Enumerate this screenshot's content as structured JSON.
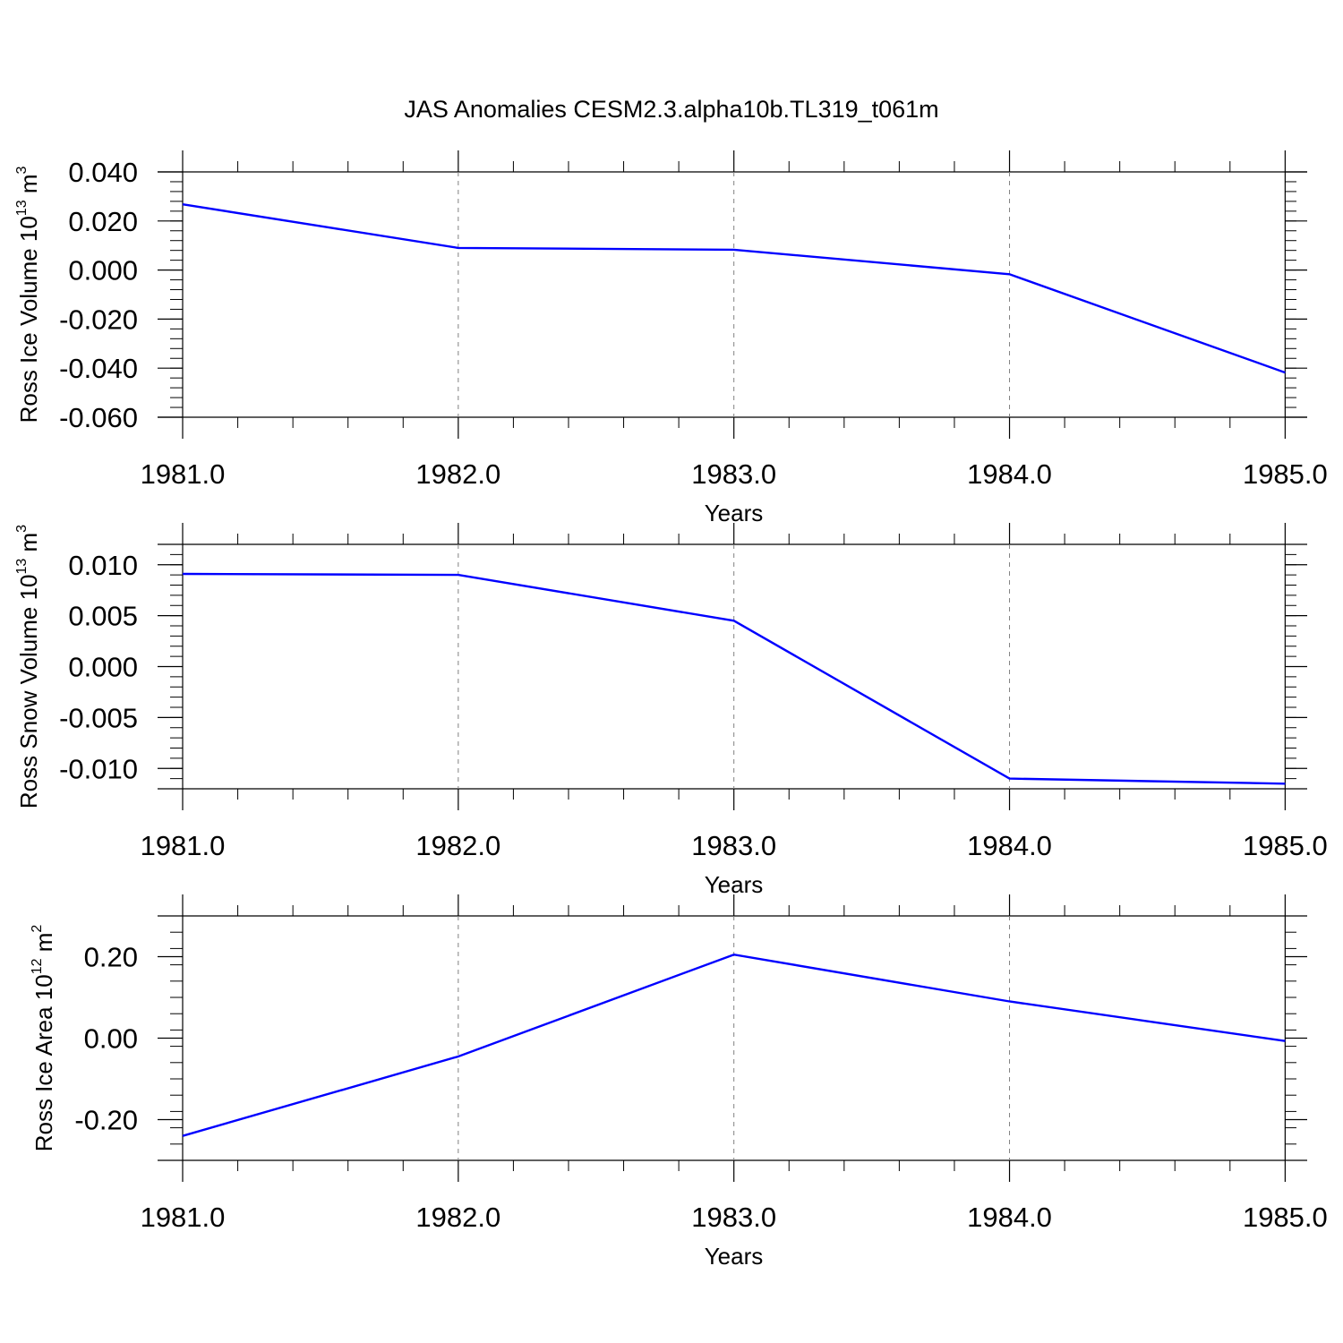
{
  "title": "JAS Anomalies CESM2.3.alpha10b.TL319_t061m",
  "colors": {
    "series": "#0000ff",
    "axis": "#000000",
    "grid": "#808080"
  },
  "chart_data": [
    {
      "type": "line",
      "xlabel": "Years",
      "ylabel": {
        "text": "Ross Ice Volume 10",
        "exponent": "13",
        "unit": " m",
        "unit_exponent": "3"
      },
      "x": [
        1981,
        1982,
        1983,
        1984,
        1985
      ],
      "y": [
        0.0268,
        0.009,
        0.0083,
        -0.0017,
        -0.0418
      ],
      "xlim": [
        1981,
        1985.08
      ],
      "ylim": [
        -0.06,
        0.04
      ],
      "xticks": [
        "1981.0",
        "1982.0",
        "1983.0",
        "1984.0",
        "1985.0"
      ],
      "yticks": [
        "-0.060",
        "-0.040",
        "-0.020",
        "0.000",
        "0.020",
        "0.040"
      ],
      "grid": "vertical dashed at major x ticks"
    },
    {
      "type": "line",
      "xlabel": "Years",
      "ylabel": {
        "text": "Ross Snow Volume 10",
        "exponent": "13",
        "unit": " m",
        "unit_exponent": "3"
      },
      "x": [
        1981,
        1982,
        1983,
        1984,
        1985
      ],
      "y": [
        0.0091,
        0.009,
        0.0045,
        -0.011,
        -0.0115
      ],
      "xlim": [
        1981,
        1985.08
      ],
      "ylim": [
        -0.012,
        0.012
      ],
      "xticks": [
        "1981.0",
        "1982.0",
        "1983.0",
        "1984.0",
        "1985.0"
      ],
      "yticks": [
        "-0.010",
        "-0.005",
        "0.000",
        "0.005",
        "0.010"
      ],
      "grid": "vertical dashed at major x ticks"
    },
    {
      "type": "line",
      "xlabel": "Years",
      "ylabel": {
        "text": "Ross Ice Area 10",
        "exponent": "12",
        "unit": " m",
        "unit_exponent": "2"
      },
      "x": [
        1981,
        1982,
        1983,
        1984,
        1985
      ],
      "y": [
        -0.24,
        -0.045,
        0.205,
        0.09,
        -0.007
      ],
      "xlim": [
        1981,
        1985.08
      ],
      "ylim": [
        -0.3,
        0.3
      ],
      "xticks": [
        "1981.0",
        "1982.0",
        "1983.0",
        "1984.0",
        "1985.0"
      ],
      "yticks": [
        "-0.20",
        "0.00",
        "0.20"
      ],
      "grid": "vertical dashed at major x ticks"
    }
  ]
}
